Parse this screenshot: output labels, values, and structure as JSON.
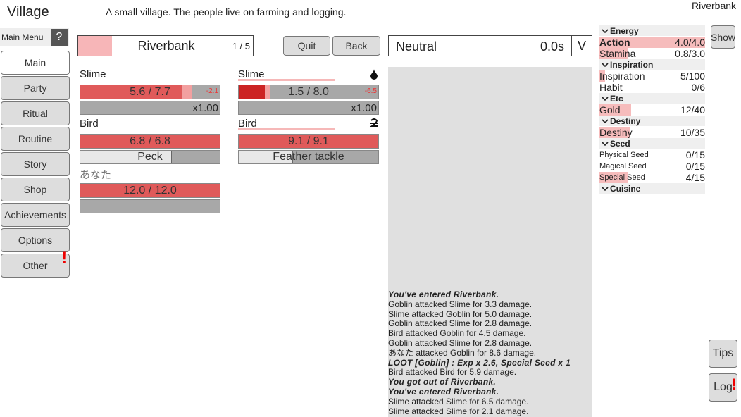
{
  "header": {
    "title": "Village",
    "description": "A small village. The people live on farming and logging.",
    "location": "Riverbank"
  },
  "menu": {
    "label": "Main Menu",
    "help": "?",
    "items": [
      "Main",
      "Party",
      "Ritual",
      "Routine",
      "Story",
      "Shop",
      "Achievements",
      "Options",
      "Other"
    ],
    "alert": "!"
  },
  "area": {
    "name": "Riverbank",
    "progress": "1 / 5",
    "quit": "Quit",
    "back": "Back"
  },
  "status": {
    "mode": "Neutral",
    "timer": "0.0s",
    "toggle": "V"
  },
  "battle": {
    "left": [
      {
        "name": "Slime",
        "hp": {
          "value": 5.6,
          "max": 7.7,
          "label": "5.6 / 7.7"
        },
        "damage": "-2.1",
        "extra": "x1.00"
      },
      {
        "name": "Bird",
        "hp": {
          "value": 6.8,
          "max": 6.8,
          "label": "6.8 / 6.8"
        },
        "skill": "Peck"
      },
      {
        "name": "あなた",
        "hp": {
          "value": 12.0,
          "max": 12.0,
          "label": "12.0 / 12.0"
        }
      }
    ],
    "right": [
      {
        "name": "Slime",
        "hp": {
          "value": 1.5,
          "max": 8.0,
          "label": "1.5 / 8.0"
        },
        "damage": "-6.5",
        "extra": "x1.00"
      },
      {
        "name": "Bird",
        "hp": {
          "value": 9.1,
          "max": 9.1,
          "label": "9.1 / 9.1"
        },
        "skill": "Feather tackle"
      }
    ]
  },
  "log": [
    {
      "text": "You've entered Riverbank.",
      "emphasis": true
    },
    {
      "text": "Goblin attacked Slime for 3.3 damage.",
      "emphasis": false
    },
    {
      "text": "Slime attacked Goblin for 5.0 damage.",
      "emphasis": false
    },
    {
      "text": "Goblin attacked Slime for 2.8 damage.",
      "emphasis": false
    },
    {
      "text": "Bird attacked Goblin for 4.5 damage.",
      "emphasis": false
    },
    {
      "text": "Goblin attacked Slime for 2.8 damage.",
      "emphasis": false
    },
    {
      "text": "あなた attacked Goblin for 8.6 damage.",
      "emphasis": false
    },
    {
      "text": "LOOT [Goblin] : Exp x 2.6, Special Seed x 1",
      "emphasis": true
    },
    {
      "text": "Bird attacked Bird for 5.9 damage.",
      "emphasis": false
    },
    {
      "text": "You got out of Riverbank.",
      "emphasis": true
    },
    {
      "text": "You've entered Riverbank.",
      "emphasis": true
    },
    {
      "text": "Slime attacked Slime for 6.5 damage.",
      "emphasis": false
    },
    {
      "text": "Slime attacked Slime for 2.1 damage.",
      "emphasis": false
    }
  ],
  "resources": [
    {
      "title": "Energy",
      "rows": [
        {
          "name": "Action",
          "value": 4.0,
          "max": 4.0,
          "label": "4.0/4.0",
          "bold": true
        },
        {
          "name": "Stamina",
          "value": 0.8,
          "max": 3.0,
          "label": "0.8/3.0"
        }
      ]
    },
    {
      "title": "Inspiration",
      "rows": [
        {
          "name": "Inspiration",
          "value": 5,
          "max": 100,
          "label": "5/100"
        },
        {
          "name": "Habit",
          "value": 0,
          "max": 6,
          "label": "0/6"
        }
      ]
    },
    {
      "title": "Etc",
      "rows": [
        {
          "name": "Gold",
          "value": 12,
          "max": 40,
          "label": "12/40"
        }
      ]
    },
    {
      "title": "Destiny",
      "rows": [
        {
          "name": "Destiny",
          "value": 10,
          "max": 35,
          "label": "10/35"
        }
      ]
    },
    {
      "title": "Seed",
      "rows": [
        {
          "name": "Physical Seed",
          "value": 0,
          "max": 15,
          "label": "0/15",
          "small": true
        },
        {
          "name": "Magical Seed",
          "value": 0,
          "max": 15,
          "label": "0/15",
          "small": true
        },
        {
          "name": "Special Seed",
          "value": 4,
          "max": 15,
          "label": "4/15",
          "small": true
        }
      ]
    },
    {
      "title": "Cuisine",
      "rows": []
    }
  ],
  "buttons": {
    "show": "Show",
    "tips": "Tips",
    "log": "Log",
    "log_alert": "!"
  }
}
